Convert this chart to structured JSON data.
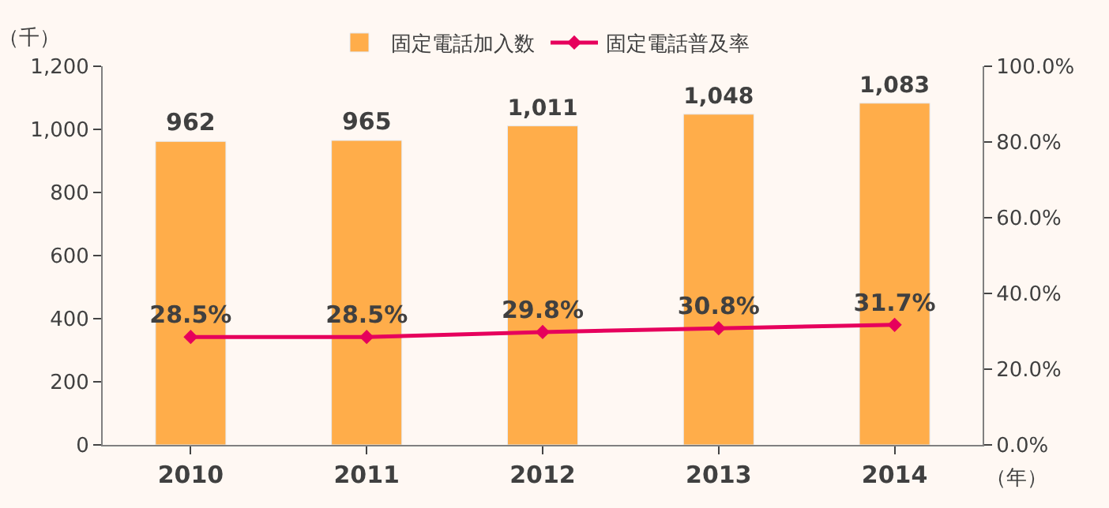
{
  "chart_data": {
    "type": "bar",
    "categories": [
      "2010",
      "2011",
      "2012",
      "2013",
      "2014"
    ],
    "series": [
      {
        "name": "固定電話加入数",
        "color": "#ffad4a",
        "values": [
          962,
          965,
          1011,
          1048,
          1083
        ],
        "value_labels": [
          "962",
          "965",
          "1,011",
          "1,048",
          "1,083"
        ]
      },
      {
        "name": "固定電話普及率",
        "type": "line",
        "axis": "y2",
        "color": "#e6005c",
        "values": [
          28.5,
          28.5,
          29.8,
          30.8,
          31.7
        ],
        "value_labels": [
          "28.5%",
          "28.5%",
          "29.8%",
          "30.8%",
          "31.7%"
        ],
        "marker": "diamond",
        "line_style": "solid"
      }
    ],
    "ylim": [
      0,
      1200
    ],
    "yticks": [
      0,
      200,
      400,
      600,
      800,
      {
        "value": 1000,
        "label": "1,000"
      },
      {
        "value": 1200,
        "label": "1,200"
      }
    ],
    "y2lim": [
      0,
      100
    ],
    "y2ticks": [
      {
        "value": 0,
        "label": "0.0%"
      },
      {
        "value": 20,
        "label": "20.0%"
      },
      {
        "value": 40,
        "label": "40.0%"
      },
      {
        "value": 60,
        "label": "60.0%"
      },
      {
        "value": 80,
        "label": "80.0%"
      },
      {
        "value": 100,
        "label": "100.0%"
      }
    ],
    "annotations": [
      "（千）",
      "（年）"
    ],
    "legend": "top",
    "grid": false
  }
}
